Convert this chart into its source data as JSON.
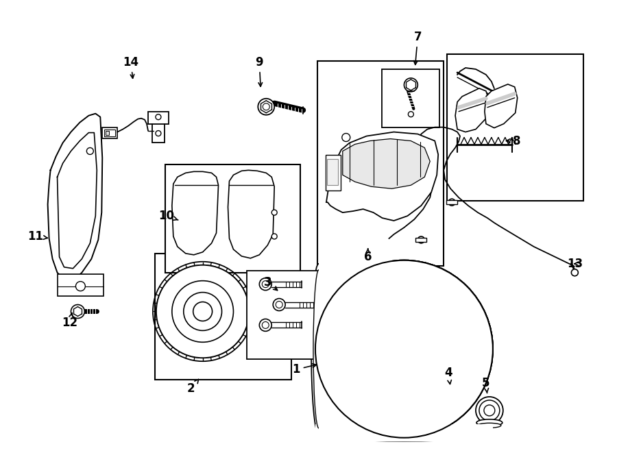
{
  "bg_color": "#ffffff",
  "line_color": "#000000",
  "label_color": "#000000",
  "fig_width": 9.0,
  "fig_height": 6.61,
  "dpi": 100
}
